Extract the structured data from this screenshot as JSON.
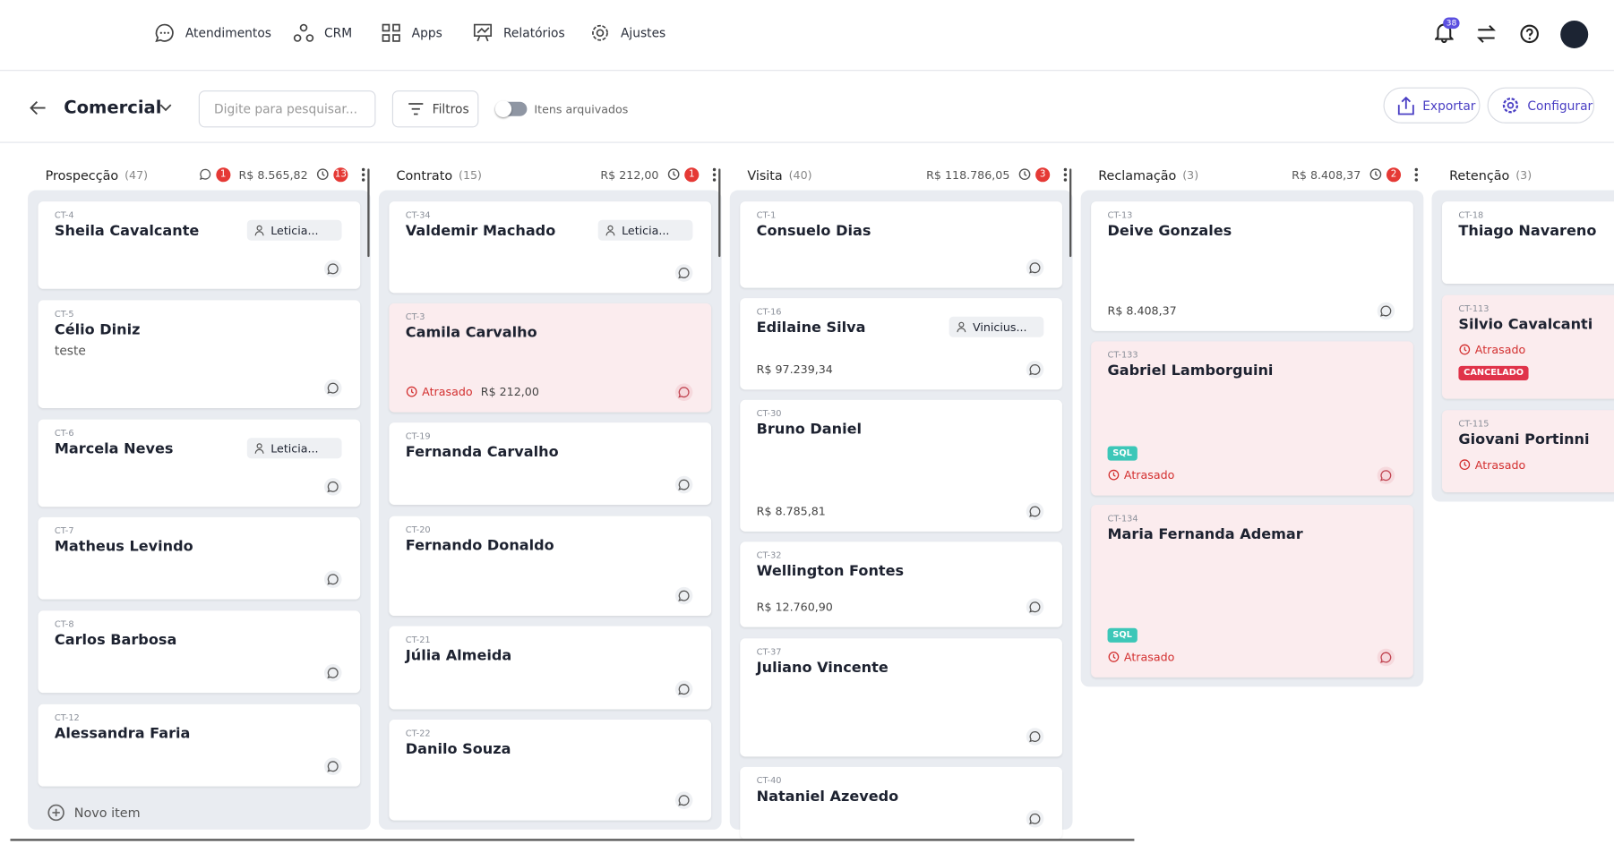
{
  "nav": {
    "items": [
      "Atendimentos",
      "CRM",
      "Apps",
      "Relatórios",
      "Ajustes"
    ],
    "notifications": "38"
  },
  "toolbar": {
    "title": "Comercial",
    "search_placeholder": "Digite para pesquisar...",
    "filter": "Filtros",
    "archived": "Itens arquivados",
    "export": "Exportar",
    "configure": "Configurar"
  },
  "columns": [
    {
      "name": "Prospecção",
      "count": "(47)",
      "comments": "1",
      "total": "R$ 8.565,82",
      "overdue": "13",
      "new_item": "Novo item",
      "cards": [
        {
          "id": "CT-4",
          "name": "Sheila Cavalcante",
          "owner": "Leticia...",
          "h": 85
        },
        {
          "id": "CT-5",
          "name": "Célio Diniz",
          "note": "teste",
          "h": 105
        },
        {
          "id": "CT-6",
          "name": "Marcela Neves",
          "owner": "Leticia...",
          "h": 85
        },
        {
          "id": "CT-7",
          "name": "Matheus Levindo",
          "h": 80
        },
        {
          "id": "CT-8",
          "name": "Carlos Barbosa",
          "h": 80
        },
        {
          "id": "CT-12",
          "name": "Alessandra Faria",
          "h": 80
        }
      ]
    },
    {
      "name": "Contrato",
      "count": "(15)",
      "total": "R$ 212,00",
      "overdue": "1",
      "cards": [
        {
          "id": "CT-34",
          "name": "Valdemir Machado",
          "owner": "Leticia...",
          "h": 89
        },
        {
          "id": "CT-3",
          "name": "Camila Carvalho",
          "status": "Atrasado",
          "value": "R$ 212,00",
          "h": 106
        },
        {
          "id": "CT-19",
          "name": "Fernanda Carvalho",
          "h": 80
        },
        {
          "id": "CT-20",
          "name": "Fernando Donaldo",
          "h": 97
        },
        {
          "id": "CT-21",
          "name": "Júlia Almeida",
          "h": 81
        },
        {
          "id": "CT-22",
          "name": "Danilo Souza",
          "h": 98
        }
      ]
    },
    {
      "name": "Visita",
      "count": "(40)",
      "total": "R$ 118.786,05",
      "overdue": "3",
      "cards": [
        {
          "id": "CT-1",
          "name": "Consuelo Dias",
          "h": 84
        },
        {
          "id": "CT-16",
          "name": "Edilaine Silva",
          "owner": "Vinicius...",
          "value": "R$ 97.239,34",
          "h": 89
        },
        {
          "id": "CT-30",
          "name": "Bruno Daniel",
          "value": "R$ 8.785,81",
          "h": 128
        },
        {
          "id": "CT-32",
          "name": "Wellington Fontes",
          "value": "R$ 12.760,90",
          "h": 83
        },
        {
          "id": "CT-37",
          "name": "Juliano Vincente",
          "h": 115
        },
        {
          "id": "CT-40",
          "name": "Nataniel Azevedo",
          "h": 70
        }
      ]
    },
    {
      "name": "Reclamação",
      "count": "(3)",
      "total": "R$ 8.408,37",
      "overdue": "2",
      "cards": [
        {
          "id": "CT-13",
          "name": "Deive Gonzales",
          "value": "R$ 8.408,37",
          "h": 126
        },
        {
          "id": "CT-133",
          "name": "Gabriel Lamborguini",
          "tag": "SQL",
          "status": "Atrasado",
          "h": 150
        },
        {
          "id": "CT-134",
          "name": "Maria Fernanda Ademar",
          "tag": "SQL",
          "status": "Atrasado",
          "h": 168
        }
      ]
    },
    {
      "name": "Retenção",
      "count": "(3)",
      "cards": [
        {
          "id": "CT-18",
          "name": "Thiago Navareno",
          "h": 80
        },
        {
          "id": "CT-113",
          "name": "Silvio Cavalcanti",
          "tag": "CANCELADO",
          "status": "Atrasado",
          "h": 101
        },
        {
          "id": "CT-115",
          "name": "Giovani Portinni",
          "status": "Atrasado",
          "h": 80
        }
      ]
    }
  ]
}
